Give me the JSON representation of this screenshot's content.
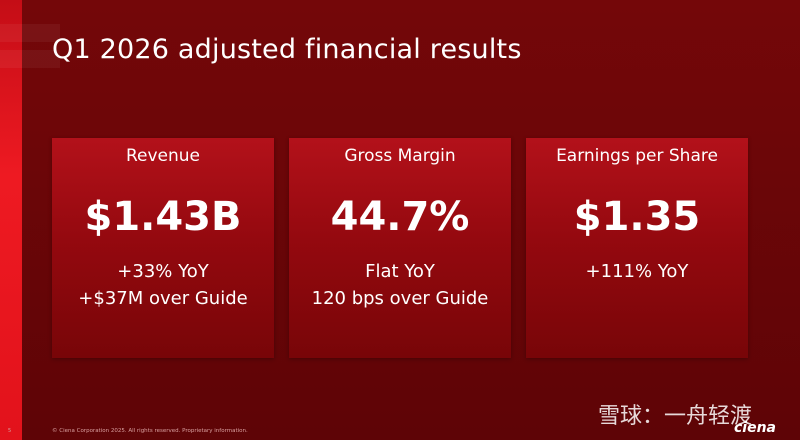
{
  "header": {
    "title": "Q1 2026 adjusted financial results"
  },
  "cards": [
    {
      "label": "Revenue",
      "value": "$1.43B",
      "lines": [
        "+33% YoY",
        "+$37M over Guide"
      ]
    },
    {
      "label": "Gross Margin",
      "value": "44.7%",
      "lines": [
        "Flat YoY",
        "120 bps over Guide"
      ]
    },
    {
      "label": "Earnings per Share",
      "value": "$1.35",
      "lines": [
        "+111% YoY"
      ]
    }
  ],
  "footer": {
    "page": "5",
    "copyright": "© Ciena Corporation 2025. All rights reserved. Proprietary information.",
    "logo": "ciena",
    "watermark": "雪球：一舟轻渡"
  }
}
